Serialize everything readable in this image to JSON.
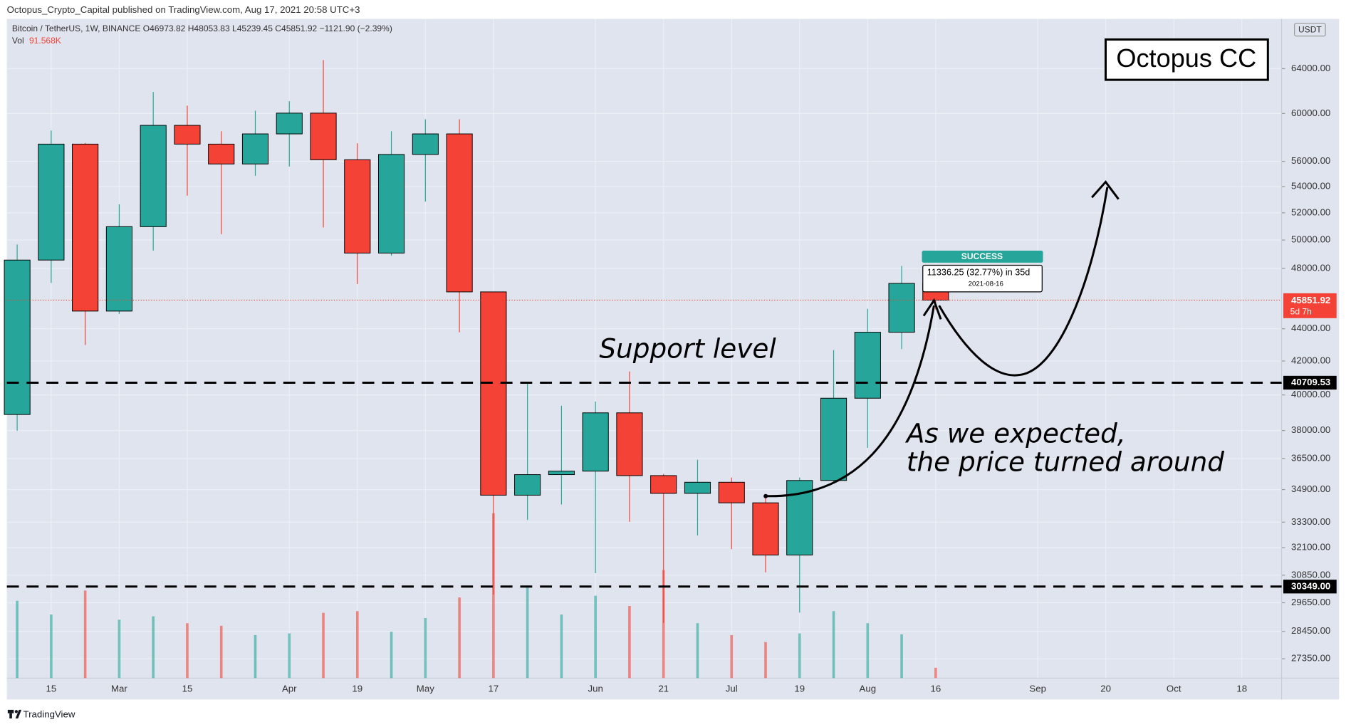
{
  "header": {
    "byline": "Octopus_Crypto_Capital published on TradingView.com, Aug 17, 2021 20:58 UTC+3",
    "footer": "TradingView"
  },
  "chart_data": {
    "type": "candlestick",
    "legend": {
      "symbol": "Bitcoin / TetherUS, 1W, BINANCE  O46973.82 H48053.83 L45239.45 C45851.92 −1121.90 (−2.39%)",
      "volume_name": "Vol",
      "volume_value": "91.568K"
    },
    "currency": "USDT",
    "categories": [
      null,
      "15",
      null,
      "Mar",
      null,
      "15",
      null,
      null,
      "Apr",
      null,
      "19",
      null,
      "May",
      null,
      "17",
      null,
      null,
      "Jun",
      null,
      "21",
      null,
      "Jul",
      null,
      "19",
      null,
      "Aug",
      null,
      "16",
      null,
      null,
      "Sep",
      null,
      "20",
      null,
      "Oct",
      null,
      "18"
    ],
    "open": [
      38886,
      48577,
      57410,
      45135,
      50971,
      58980,
      57410,
      55790,
      58260,
      60030,
      56130,
      49070,
      56560,
      58260,
      46400,
      34620,
      35660,
      35840,
      38980,
      35610,
      34710,
      35270,
      34240,
      31760,
      35360,
      39810,
      43780,
      46973.82,
      null,
      null,
      null,
      null,
      null,
      null,
      null,
      null,
      null
    ],
    "high": [
      49680,
      58550,
      57508,
      52640,
      61890,
      60680,
      58480,
      60240,
      61070,
      64800,
      57480,
      58480,
      59500,
      59500,
      46400,
      40760,
      39380,
      39620,
      41370,
      35700,
      36430,
      35510,
      34660,
      35510,
      42670,
      45280,
      48170,
      48053.83,
      null,
      null,
      null,
      null,
      null,
      null,
      null,
      null,
      null
    ],
    "low": [
      37990,
      47000,
      42980,
      44950,
      49250,
      53300,
      50420,
      54850,
      55580,
      50920,
      46930,
      48880,
      52840,
      43780,
      30000,
      33410,
      34160,
      30940,
      33320,
      28800,
      32670,
      32030,
      30980,
      29230,
      35200,
      37060,
      42730,
      45239.45,
      null,
      null,
      null,
      null,
      null,
      null,
      null,
      null,
      null
    ],
    "close": [
      48577,
      57410,
      45135,
      50971,
      58980,
      57410,
      55790,
      58260,
      60030,
      56130,
      49070,
      56560,
      58260,
      46400,
      34620,
      35660,
      35840,
      38980,
      35610,
      34710,
      35270,
      34240,
      31760,
      35360,
      39810,
      43780,
      46970,
      45851.92,
      null,
      null,
      null,
      null,
      null,
      null,
      null,
      null,
      null
    ],
    "volume": [
      687,
      565,
      778,
      519,
      549,
      488,
      465,
      382,
      397,
      580,
      595,
      412,
      534,
      717,
      1465,
      824,
      565,
      732,
      641,
      961,
      488,
      382,
      320,
      397,
      595,
      488,
      389,
      91.568,
      null,
      null,
      null,
      null,
      null,
      null,
      null,
      null,
      null
    ],
    "up_color": "#26a69a",
    "down_color": "#f44336",
    "log_scale": true,
    "grid": true,
    "ylim": [
      26600,
      68760
    ],
    "vlim": [
      0,
      5860
    ],
    "yticks": [
      {
        "value": 64000,
        "label": "64000.00"
      },
      {
        "value": 60000,
        "label": "60000.00"
      },
      {
        "value": 56000,
        "label": "56000.00"
      },
      {
        "value": 54000,
        "label": "54000.00"
      },
      {
        "value": 52000,
        "label": "52000.00"
      },
      {
        "value": 50000,
        "label": "50000.00"
      },
      {
        "value": 48000,
        "label": "48000.00"
      },
      {
        "value": 44000,
        "label": "44000.00"
      },
      {
        "value": 42000,
        "label": "42000.00"
      },
      {
        "value": 40000,
        "label": "40000.00"
      },
      {
        "value": 38000,
        "label": "38000.00"
      },
      {
        "value": 36500,
        "label": "36500.00"
      },
      {
        "value": 34900,
        "label": "34900.00"
      },
      {
        "value": 33300,
        "label": "33300.00"
      },
      {
        "value": 32100,
        "label": "32100.00"
      },
      {
        "value": 30850,
        "label": "30850.00"
      },
      {
        "value": 29650,
        "label": "29650.00"
      },
      {
        "value": 28450,
        "label": "28450.00"
      },
      {
        "value": 27350,
        "label": "27350.00"
      }
    ],
    "levels": [
      40709.53,
      {
        "value": 30349,
        "label": "30349.00"
      }
    ],
    "countdown": "5d 7h",
    "annotations": {
      "brand": "Octopus CC",
      "support": "Support level",
      "comment_1": "As we expected,",
      "comment_2": "the price turned around",
      "status": "SUCCESS",
      "measure": "11336.25 (32.77%) in 35d",
      "measure_date": "2021-08-16"
    }
  }
}
